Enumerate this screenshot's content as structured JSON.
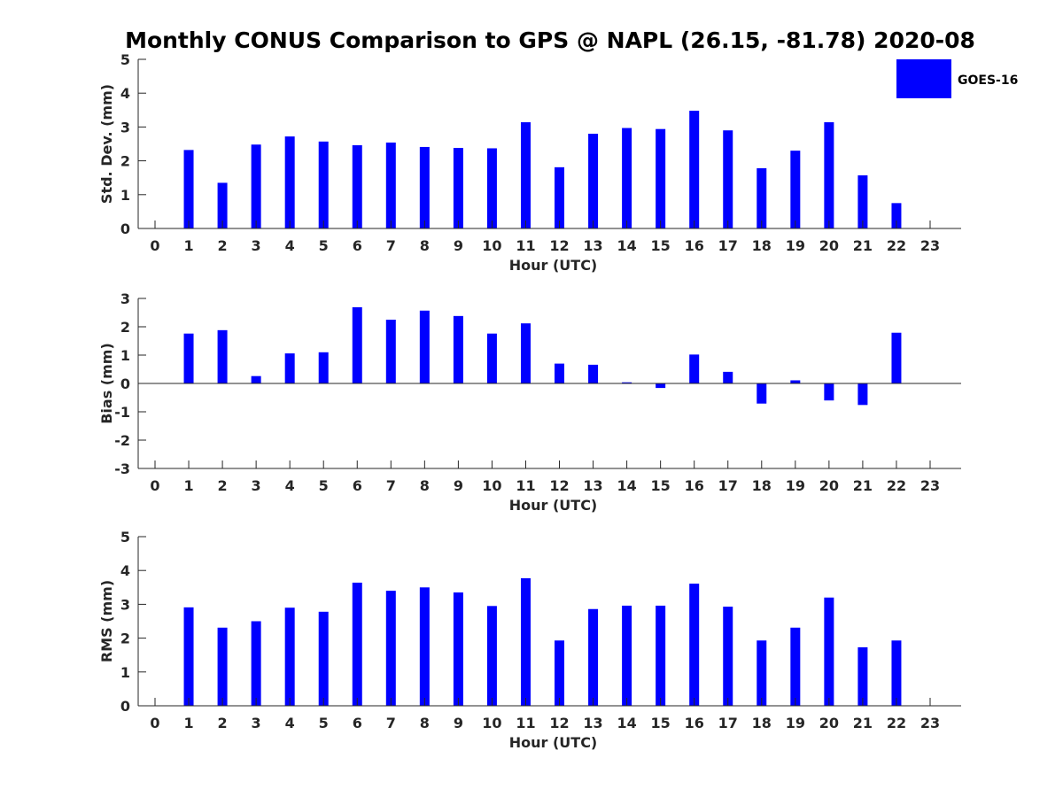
{
  "title": "Monthly CONUS Comparison to GPS @ NAPL (26.15, -81.78) 2020-08",
  "legend": {
    "label": "GOES-16",
    "color": "#0000ff"
  },
  "chart_data": [
    {
      "type": "bar",
      "name": "std-dev",
      "xlabel": "Hour (UTC)",
      "ylabel": "Std. Dev. (mm)",
      "ylim": [
        0,
        5
      ],
      "yticks": [
        0,
        1,
        2,
        3,
        4,
        5
      ],
      "categories": [
        0,
        1,
        2,
        3,
        4,
        5,
        6,
        7,
        8,
        9,
        10,
        11,
        12,
        13,
        14,
        15,
        16,
        17,
        18,
        19,
        20,
        21,
        22,
        23
      ],
      "series": [
        {
          "name": "GOES-16",
          "color": "#0000ff",
          "values": [
            null,
            2.32,
            1.35,
            2.48,
            2.72,
            2.57,
            2.46,
            2.54,
            2.41,
            2.38,
            2.37,
            3.14,
            1.81,
            2.8,
            2.97,
            2.94,
            3.48,
            2.9,
            1.78,
            2.3,
            3.14,
            1.57,
            0.75,
            null
          ]
        }
      ]
    },
    {
      "type": "bar",
      "name": "bias",
      "xlabel": "Hour (UTC)",
      "ylabel": "Bias (mm)",
      "ylim": [
        -3,
        3
      ],
      "yticks": [
        -3,
        -2,
        -1,
        0,
        1,
        2,
        3
      ],
      "categories": [
        0,
        1,
        2,
        3,
        4,
        5,
        6,
        7,
        8,
        9,
        10,
        11,
        12,
        13,
        14,
        15,
        16,
        17,
        18,
        19,
        20,
        21,
        22,
        23
      ],
      "series": [
        {
          "name": "GOES-16",
          "color": "#0000ff",
          "values": [
            null,
            1.76,
            1.88,
            0.26,
            1.06,
            1.1,
            2.69,
            2.25,
            2.57,
            2.38,
            1.76,
            2.12,
            0.7,
            0.66,
            0.04,
            -0.16,
            1.02,
            0.41,
            -0.71,
            0.11,
            -0.6,
            -0.76,
            1.79,
            null
          ]
        }
      ]
    },
    {
      "type": "bar",
      "name": "rms",
      "xlabel": "Hour (UTC)",
      "ylabel": "RMS (mm)",
      "ylim": [
        0,
        5
      ],
      "yticks": [
        0,
        1,
        2,
        3,
        4,
        5
      ],
      "categories": [
        0,
        1,
        2,
        3,
        4,
        5,
        6,
        7,
        8,
        9,
        10,
        11,
        12,
        13,
        14,
        15,
        16,
        17,
        18,
        19,
        20,
        21,
        22,
        23
      ],
      "series": [
        {
          "name": "GOES-16",
          "color": "#0000ff",
          "values": [
            null,
            2.91,
            2.31,
            2.5,
            2.9,
            2.78,
            3.64,
            3.4,
            3.5,
            3.35,
            2.95,
            3.77,
            1.93,
            2.86,
            2.96,
            2.96,
            3.61,
            2.93,
            1.93,
            2.31,
            3.2,
            1.73,
            1.93,
            null
          ]
        }
      ]
    }
  ]
}
